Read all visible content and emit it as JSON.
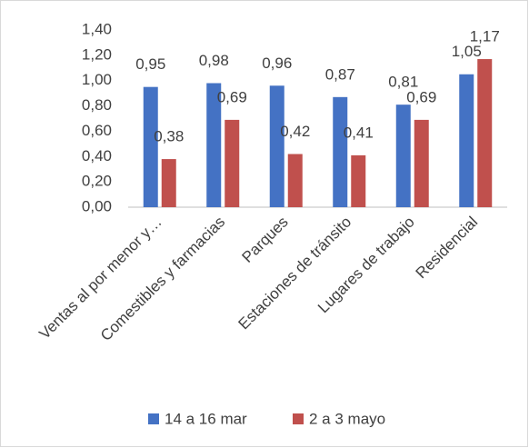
{
  "chart_data": {
    "type": "bar",
    "categories": [
      "Ventas al por menor y…",
      "Comestibles y farmacias",
      "Parques",
      "Estaciones de tránsito",
      "Lugares de trabajo",
      "Residencial"
    ],
    "series": [
      {
        "name": "14 a 16 mar",
        "color": "#4472c4",
        "values": [
          0.95,
          0.98,
          0.96,
          0.87,
          0.81,
          1.05
        ],
        "value_labels": [
          "0,95",
          "0,98",
          "0,96",
          "0,87",
          "0,81",
          "1,05"
        ]
      },
      {
        "name": "2 a 3 mayo",
        "color": "#c0504d",
        "values": [
          0.38,
          0.69,
          0.42,
          0.41,
          0.69,
          1.17
        ],
        "value_labels": [
          "0,38",
          "0,69",
          "0,42",
          "0,41",
          "0,69",
          "1,17"
        ]
      }
    ],
    "ylim": [
      0,
      1.4
    ],
    "yticks": [
      {
        "value": 0,
        "label": "0,00"
      },
      {
        "value": 0.2,
        "label": "0,20"
      },
      {
        "value": 0.4,
        "label": "0,40"
      },
      {
        "value": 0.6,
        "label": "0,60"
      },
      {
        "value": 0.8,
        "label": "0,80"
      },
      {
        "value": 1.0,
        "label": "1,00"
      },
      {
        "value": 1.2,
        "label": "1,20"
      },
      {
        "value": 1.4,
        "label": "1,40"
      }
    ],
    "grid": false,
    "legend": "bottom"
  }
}
